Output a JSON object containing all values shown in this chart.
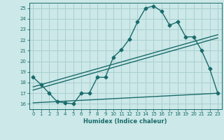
{
  "background_color": "#cce8e8",
  "grid_color": "#aacfcf",
  "line_color": "#1a6b6b",
  "xlabel": "Humidex (Indice chaleur)",
  "xlim": [
    -0.5,
    23.5
  ],
  "ylim": [
    15.5,
    25.5
  ],
  "yticks": [
    16,
    17,
    18,
    19,
    20,
    21,
    22,
    23,
    24,
    25
  ],
  "xticks": [
    0,
    1,
    2,
    3,
    4,
    5,
    6,
    7,
    8,
    9,
    10,
    11,
    12,
    13,
    14,
    15,
    16,
    17,
    18,
    19,
    20,
    21,
    22,
    23
  ],
  "line1_x": [
    0,
    1,
    2,
    3,
    4,
    5,
    6,
    7,
    8,
    9,
    10,
    11,
    12,
    13,
    14,
    15,
    16,
    17,
    18,
    19,
    20,
    21,
    22,
    23
  ],
  "line1_y": [
    18.5,
    17.8,
    17.0,
    16.2,
    16.1,
    16.0,
    17.0,
    17.0,
    18.5,
    18.5,
    20.4,
    21.1,
    22.1,
    23.7,
    25.0,
    25.2,
    24.7,
    23.4,
    23.7,
    22.3,
    22.3,
    21.0,
    19.3,
    17.0
  ],
  "line2_x": [
    0,
    23
  ],
  "line2_y": [
    17.6,
    22.5
  ],
  "line3_x": [
    0,
    23
  ],
  "line3_y": [
    17.3,
    22.2
  ],
  "line4_x": [
    0,
    23
  ],
  "line4_y": [
    16.1,
    17.0
  ],
  "marker": "D",
  "markersize": 2.5,
  "linewidth": 1.0
}
